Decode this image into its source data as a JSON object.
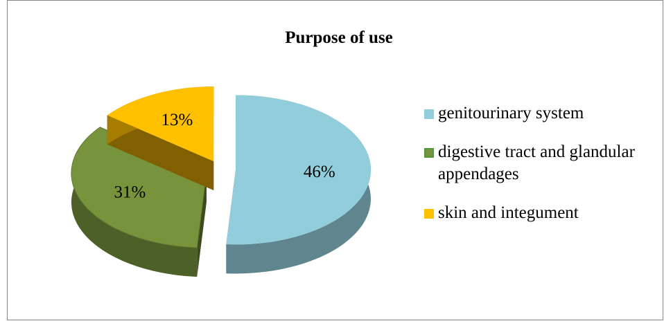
{
  "chart_data": {
    "type": "pie",
    "title": "Purpose of use",
    "categories": [
      "genitourinary system",
      "digestive tract and glandular appendages",
      "skin and integument"
    ],
    "values": [
      46,
      31,
      13
    ],
    "value_labels": [
      "46%",
      "31%",
      "13%"
    ],
    "colors": [
      "#92cddc",
      "#77933c",
      "#ffc000"
    ],
    "legend": "right"
  }
}
